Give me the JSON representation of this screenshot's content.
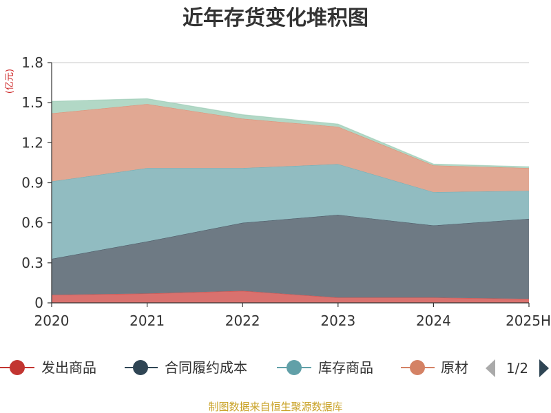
{
  "chart_data": {
    "type": "area",
    "stacked": true,
    "title": "近年存货变化堆积图",
    "unit_label": "(亿元)",
    "x": [
      "2020",
      "2021",
      "2022",
      "2023",
      "2024",
      "2025H"
    ],
    "ylim": [
      0,
      1.8
    ],
    "yticks": [
      "0",
      "0.3",
      "0.6",
      "0.9",
      "1.2",
      "1.5",
      "1.8"
    ],
    "grid": true,
    "legend_position": "bottom",
    "series": [
      {
        "name": "发出商品",
        "color": "#c23531",
        "fill": "#d9716e",
        "values": [
          0.06,
          0.07,
          0.09,
          0.04,
          0.04,
          0.03
        ]
      },
      {
        "name": "合同履约成本",
        "color": "#2f4554",
        "fill": "#6e7a84",
        "values": [
          0.27,
          0.39,
          0.51,
          0.62,
          0.54,
          0.6
        ]
      },
      {
        "name": "库存商品",
        "color": "#61a0a8",
        "fill": "#91bcc1",
        "values": [
          0.58,
          0.55,
          0.41,
          0.38,
          0.25,
          0.21
        ]
      },
      {
        "name": "原材料",
        "color": "#d48265",
        "fill": "#e1a893",
        "values": [
          0.51,
          0.48,
          0.37,
          0.28,
          0.2,
          0.17
        ]
      },
      {
        "name": "",
        "color": "#91c7ae",
        "fill": "#b2d8c6",
        "values": [
          0.09,
          0.04,
          0.03,
          0.02,
          0.01,
          0.01
        ]
      }
    ],
    "legend_page": "1/2",
    "legend_items_shown": [
      "发出商品",
      "合同履约成本",
      "库存商品",
      "原材"
    ]
  },
  "source": "制图数据来自恒生聚源数据库"
}
